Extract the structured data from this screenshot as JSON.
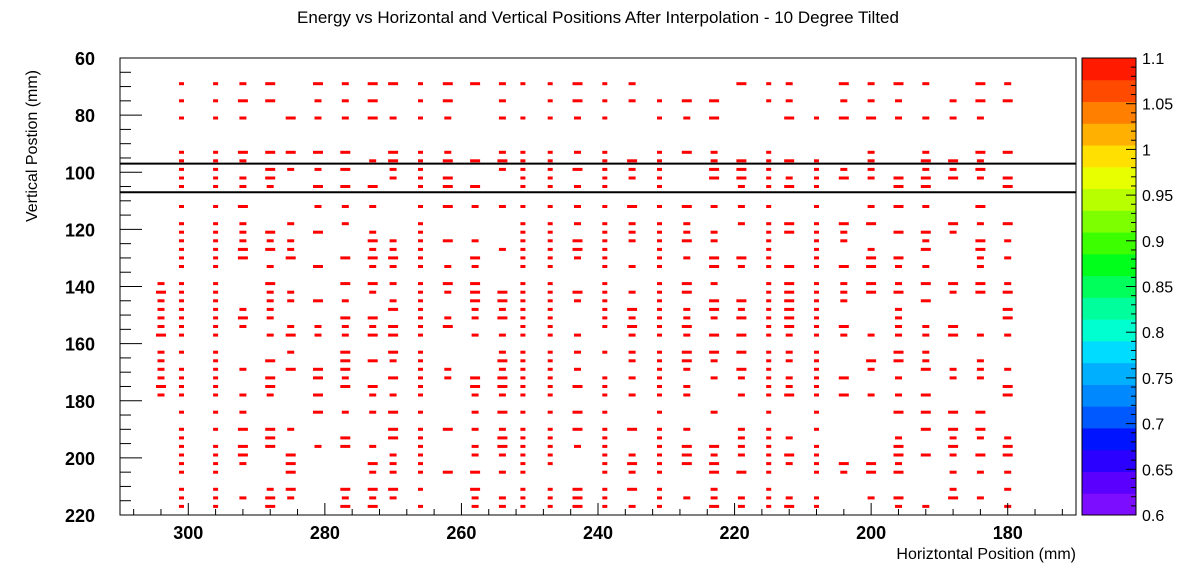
{
  "chart_data": {
    "type": "heatmap",
    "title": "Energy vs Horizontal and Vertical Positions After Interpolation - 10 Degree Tilted",
    "xlabel": "Horiztontal Position (mm)",
    "ylabel": "Vertical Postion (mm)",
    "xlim": [
      310,
      170
    ],
    "ylim": [
      220,
      60
    ],
    "x_axis_reversed": true,
    "y_axis_reversed": true,
    "x_ticks": [
      300,
      280,
      260,
      240,
      220,
      200,
      180
    ],
    "y_ticks": [
      60,
      80,
      100,
      120,
      140,
      160,
      180,
      200,
      220
    ],
    "colorbar": {
      "min": 0.6,
      "max": 1.1,
      "ticks": [
        "1.1",
        "1.05",
        "1",
        "0.95",
        "0.9",
        "0.85",
        "0.8",
        "0.75",
        "0.7",
        "0.65",
        "0.6"
      ],
      "palette": [
        "#7d0dff",
        "#5a00ff",
        "#2b00ff",
        "#0014ff",
        "#0058ff",
        "#0088ff",
        "#00b0ff",
        "#00dcff",
        "#00ffd0",
        "#00ff9c",
        "#00ff5a",
        "#00ff1a",
        "#3cff00",
        "#7dff00",
        "#b8ff00",
        "#e8ff00",
        "#ffe000",
        "#ffb000",
        "#ff8000",
        "#ff4a00",
        "#ff1a00"
      ]
    },
    "horizontal_lines_y": [
      97,
      107
    ],
    "cell_value": 1.1,
    "cell_color": "#ff0000",
    "columns_x": [
      304,
      301,
      296,
      292,
      288,
      285,
      281,
      277,
      273,
      270,
      266,
      262,
      258,
      254,
      251,
      247,
      243,
      239,
      235,
      231,
      227,
      223,
      219,
      215,
      212,
      208,
      204,
      200,
      196,
      192,
      188,
      184,
      180
    ],
    "rows_y": [
      69,
      75,
      81,
      93,
      96,
      99,
      102,
      105,
      112,
      118,
      121,
      124,
      127,
      130,
      133,
      139,
      142,
      145,
      148,
      151,
      154,
      157,
      163,
      166,
      169,
      172,
      175,
      178,
      184,
      190,
      193,
      196,
      199,
      202,
      205,
      211,
      214,
      217
    ]
  }
}
